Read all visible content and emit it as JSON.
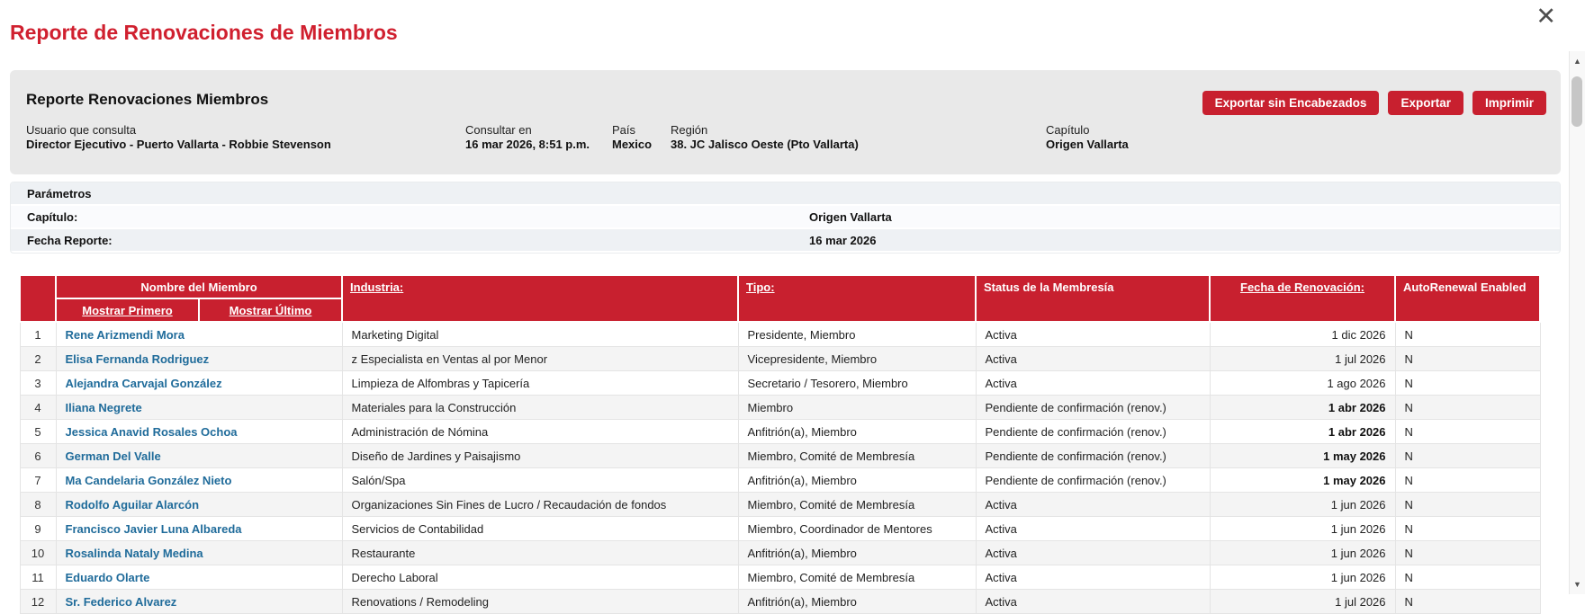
{
  "colors": {
    "brand_red": "#c8202f",
    "title_red": "#d0202f",
    "link_blue": "#1f6b9a",
    "header_text": "#ffffff"
  },
  "icons": {
    "close": "✕",
    "scroll_up": "▲",
    "scroll_down": "▼"
  },
  "page": {
    "title": "Reporte de Renovaciones de Miembros"
  },
  "summary": {
    "title": "Reporte Renovaciones Miembros",
    "buttons": [
      "Exportar sin Encabezados",
      "Exportar",
      "Imprimir"
    ],
    "fields": [
      {
        "label": "Usuario que consulta",
        "value": "Director Ejecutivo - Puerto Vallarta - Robbie Stevenson"
      },
      {
        "label": "Consultar en",
        "value": "16 mar 2026, 8:51 p.m."
      },
      {
        "label": "País",
        "value": "Mexico"
      },
      {
        "label": "Región",
        "value": "38. JC Jalisco Oeste (Pto Vallarta)"
      },
      {
        "label": "Capítulo",
        "value": "Origen Vallarta"
      }
    ]
  },
  "parameters": {
    "title": "Parámetros",
    "rows": [
      {
        "label": "Capítulo:",
        "value": "Origen Vallarta"
      },
      {
        "label": "Fecha Reporte:",
        "value": "16 mar 2026"
      }
    ]
  },
  "table": {
    "columns": {
      "number": "",
      "name": "Nombre del Miembro",
      "show_first": "Mostrar Primero",
      "show_last": "Mostrar Último",
      "industry": "Industria:",
      "type": "Tipo:",
      "status": "Status de la Membresía",
      "renewal": "Fecha de Renovación:",
      "autorenew": "AutoRenewal Enabled"
    },
    "rows": [
      {
        "num": "1",
        "name": "Rene Arizmendi Mora",
        "industry": "Marketing Digital",
        "type": "Presidente, Miembro",
        "status": "Activa",
        "renewal": "1 dic 2026",
        "renewal_bold": false,
        "autorenew": "N"
      },
      {
        "num": "2",
        "name": "Elisa Fernanda Rodriguez",
        "industry": "z Especialista en Ventas al por Menor",
        "type": "Vicepresidente, Miembro",
        "status": "Activa",
        "renewal": "1 jul 2026",
        "renewal_bold": false,
        "autorenew": "N"
      },
      {
        "num": "3",
        "name": "Alejandra Carvajal González",
        "industry": "Limpieza de Alfombras y Tapicería",
        "type": "Secretario / Tesorero, Miembro",
        "status": "Activa",
        "renewal": "1 ago 2026",
        "renewal_bold": false,
        "autorenew": "N"
      },
      {
        "num": "4",
        "name": "Iliana Negrete",
        "industry": "Materiales para la Construcción",
        "type": "Miembro",
        "status": "Pendiente de confirmación (renov.)",
        "renewal": "1 abr 2026",
        "renewal_bold": true,
        "autorenew": "N"
      },
      {
        "num": "5",
        "name": "Jessica Anavid Rosales Ochoa",
        "industry": "Administración de Nómina",
        "type": "Anfitrión(a), Miembro",
        "status": "Pendiente de confirmación (renov.)",
        "renewal": "1 abr 2026",
        "renewal_bold": true,
        "autorenew": "N"
      },
      {
        "num": "6",
        "name": "German Del Valle",
        "industry": "Diseño de Jardines y Paisajismo",
        "type": "Miembro, Comité de Membresía",
        "status": "Pendiente de confirmación (renov.)",
        "renewal": "1 may 2026",
        "renewal_bold": true,
        "autorenew": "N"
      },
      {
        "num": "7",
        "name": "Ma Candelaria González Nieto",
        "industry": "Salón/Spa",
        "type": "Anfitrión(a), Miembro",
        "status": "Pendiente de confirmación (renov.)",
        "renewal": "1 may 2026",
        "renewal_bold": true,
        "autorenew": "N"
      },
      {
        "num": "8",
        "name": "Rodolfo Aguilar Alarcón",
        "industry": "Organizaciones Sin Fines de Lucro / Recaudación de fondos",
        "type": "Miembro, Comité de Membresía",
        "status": "Activa",
        "renewal": "1 jun 2026",
        "renewal_bold": false,
        "autorenew": "N"
      },
      {
        "num": "9",
        "name": "Francisco Javier Luna Albareda",
        "industry": "Servicios de Contabilidad",
        "type": "Miembro, Coordinador de Mentores",
        "status": "Activa",
        "renewal": "1 jun 2026",
        "renewal_bold": false,
        "autorenew": "N"
      },
      {
        "num": "10",
        "name": "Rosalinda Nataly Medina",
        "industry": "Restaurante",
        "type": "Anfitrión(a), Miembro",
        "status": "Activa",
        "renewal": "1 jun 2026",
        "renewal_bold": false,
        "autorenew": "N"
      },
      {
        "num": "11",
        "name": "Eduardo Olarte",
        "industry": "Derecho Laboral",
        "type": "Miembro, Comité de Membresía",
        "status": "Activa",
        "renewal": "1 jun 2026",
        "renewal_bold": false,
        "autorenew": "N"
      },
      {
        "num": "12",
        "name": "Sr. Federico Alvarez",
        "industry": "Renovations / Remodeling",
        "type": "Anfitrión(a), Miembro",
        "status": "Activa",
        "renewal": "1 jul 2026",
        "renewal_bold": false,
        "autorenew": "N"
      }
    ]
  }
}
